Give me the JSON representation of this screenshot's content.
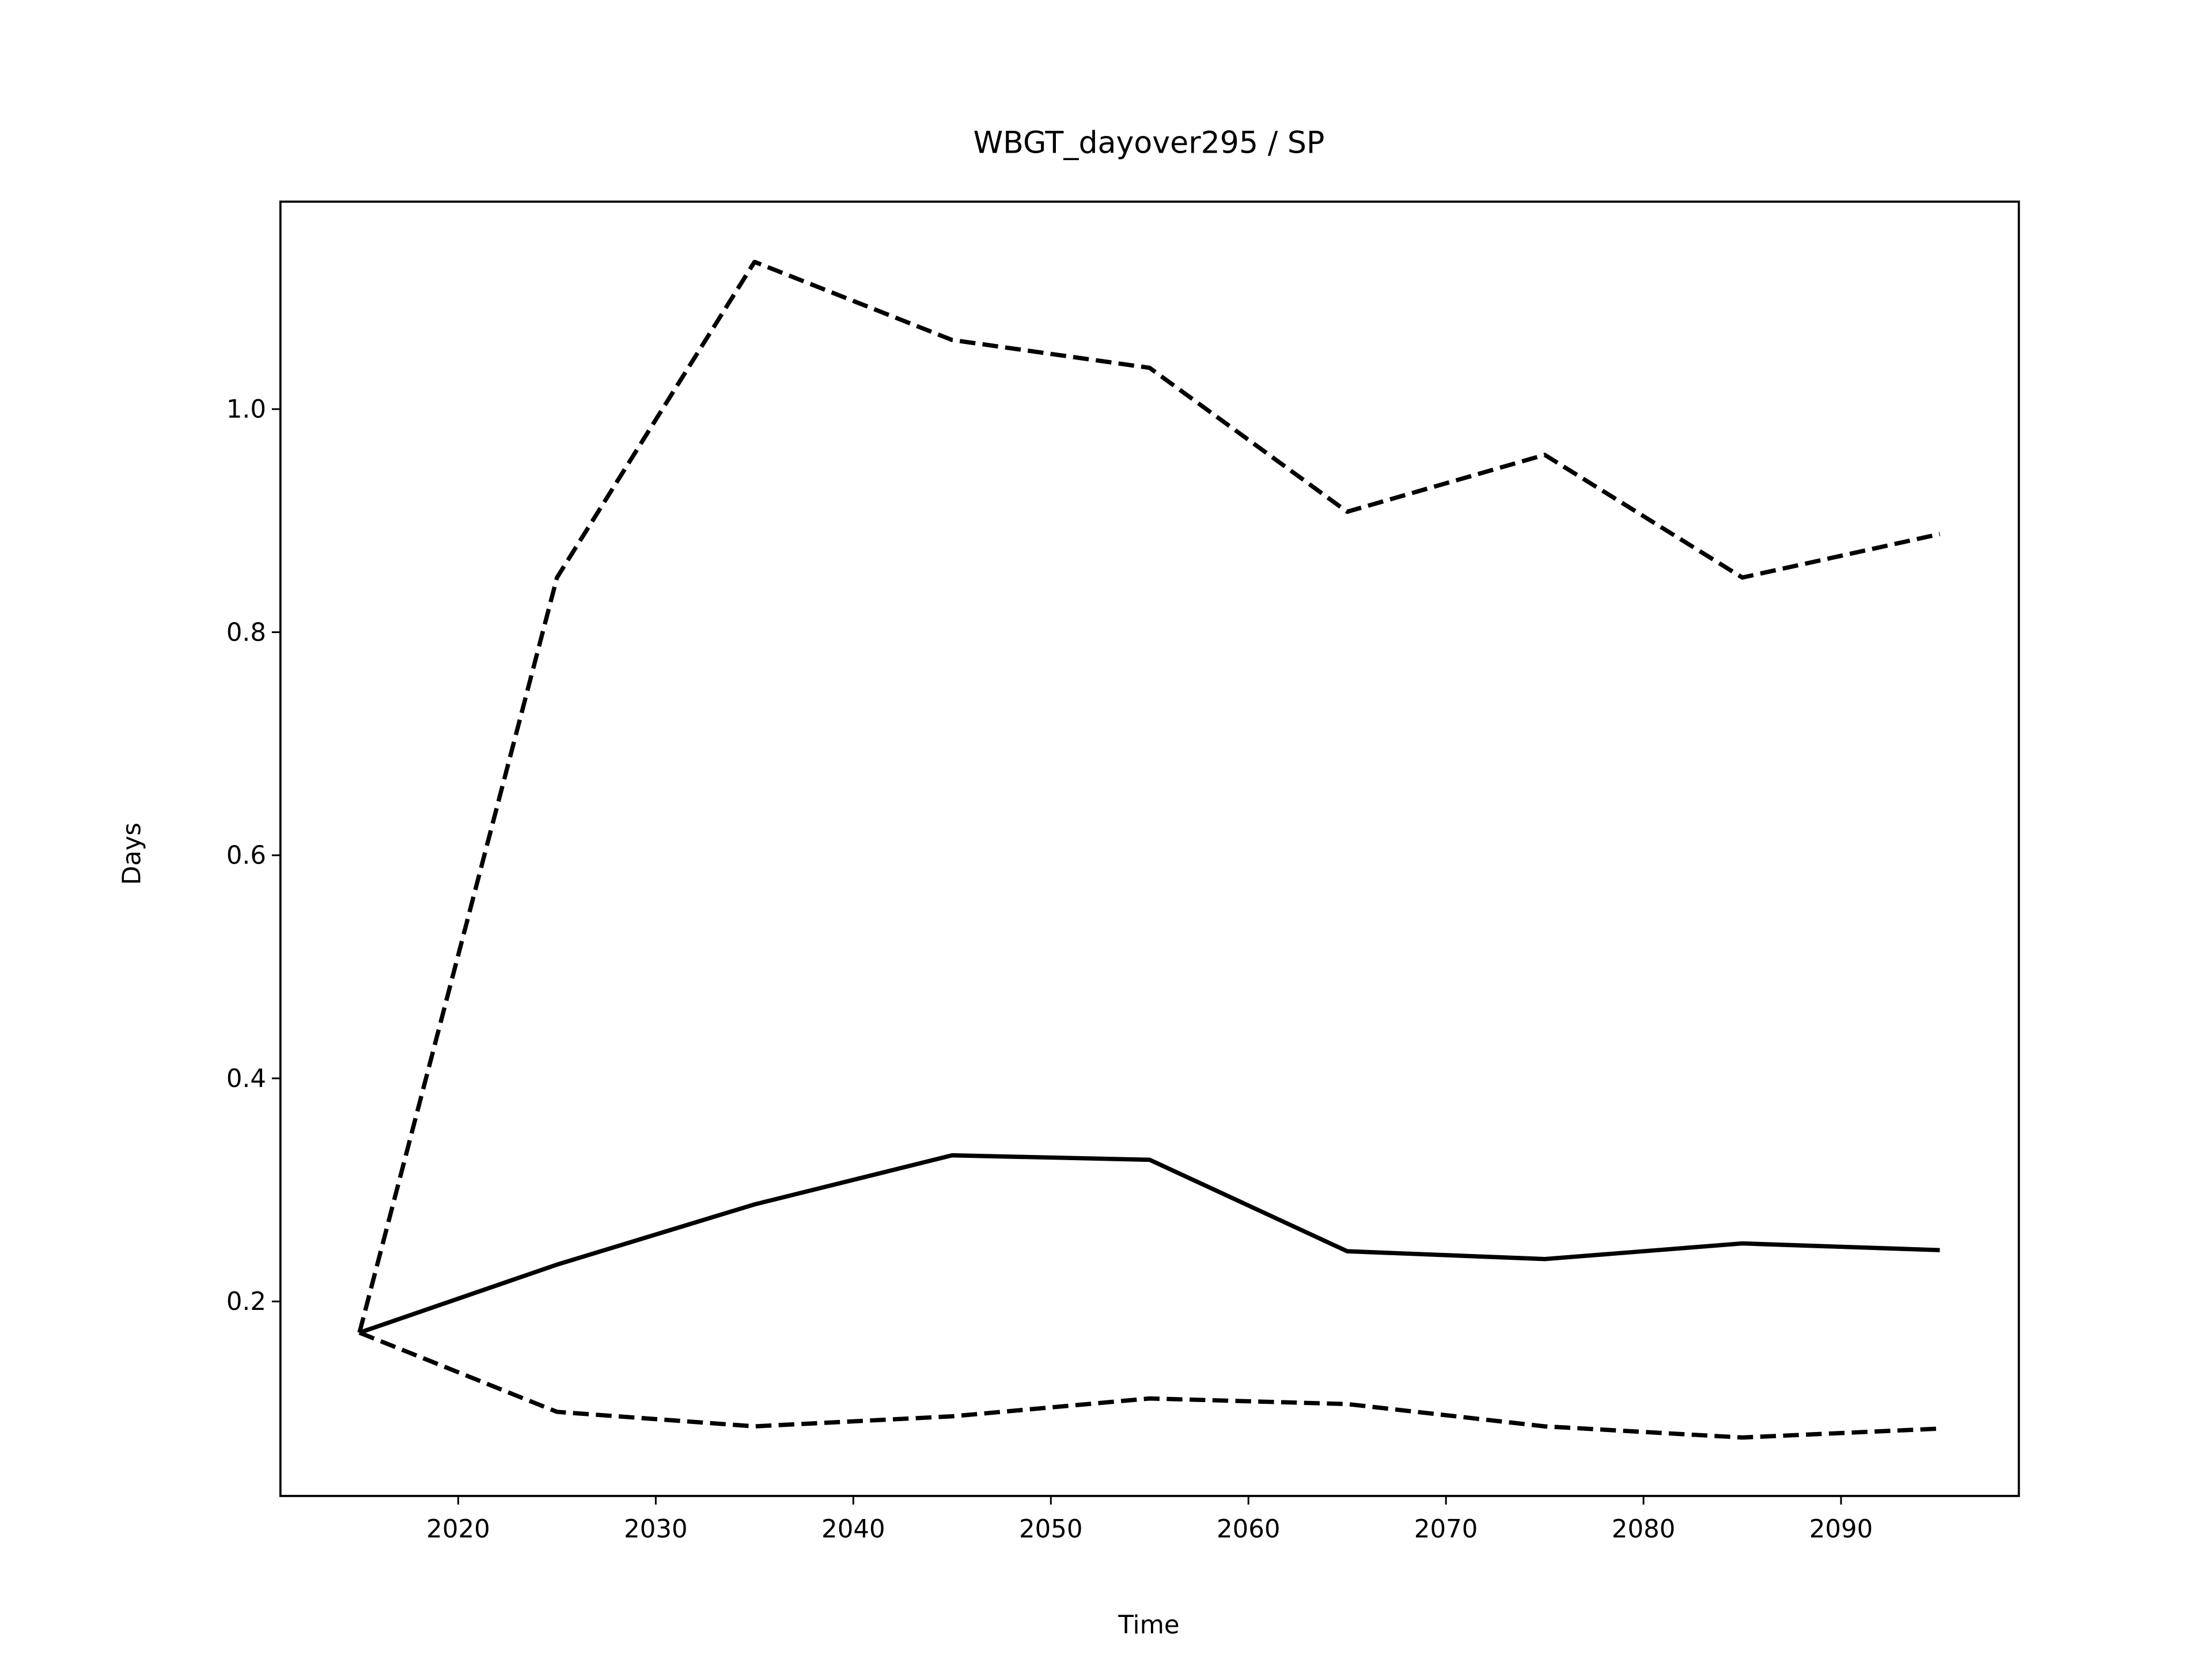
{
  "chart_data": {
    "type": "line",
    "title": "WBGT_dayover295 / SP",
    "x_label": "Time",
    "y_label": "Days",
    "x": [
      2015,
      2025,
      2035,
      2045,
      2055,
      2065,
      2075,
      2085,
      2095
    ],
    "series": [
      {
        "color": "#000000",
        "linestyle": "solid",
        "values": [
          0.172,
          0.233,
          0.287,
          0.331,
          0.327,
          0.245,
          0.238,
          0.252,
          0.246
        ]
      },
      {
        "color": "#000000",
        "linestyle": "dashed",
        "values": [
          0.172,
          0.849,
          1.132,
          1.062,
          1.037,
          0.908,
          0.959,
          0.849,
          0.888
        ]
      },
      {
        "color": "#000000",
        "linestyle": "dashed",
        "values": [
          0.172,
          0.101,
          0.088,
          0.097,
          0.113,
          0.108,
          0.088,
          0.078,
          0.086
        ]
      }
    ],
    "xlim": [
      2011,
      2099
    ],
    "ylim": [
      0.0256,
      1.186
    ],
    "xticks": [
      2020,
      2030,
      2040,
      2050,
      2060,
      2070,
      2080,
      2090
    ],
    "yticks": [
      0.2,
      0.4,
      0.6,
      0.8,
      {
        "value": 1,
        "label": "1.0"
      }
    ],
    "grid": false
  }
}
